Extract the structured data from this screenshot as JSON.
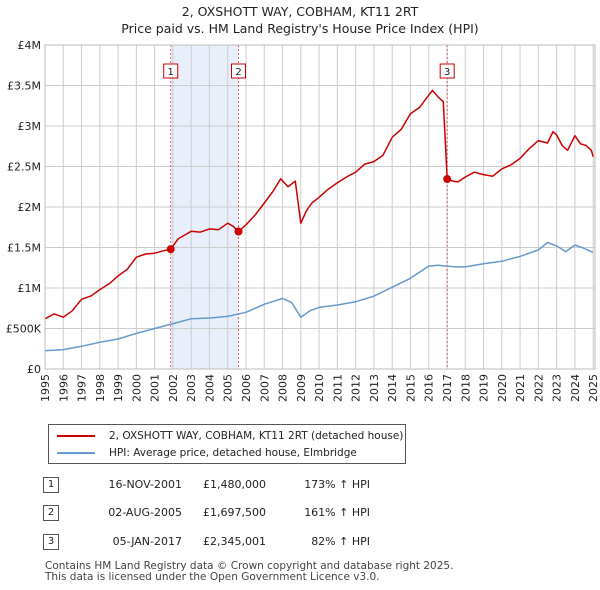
{
  "title": {
    "line1": "2, OXSHOTT WAY, COBHAM, KT11 2RT",
    "line2": "Price paid vs. HM Land Registry's House Price Index (HPI)"
  },
  "colors": {
    "property": "#cc0000",
    "hpi": "#6699cc",
    "shade": "#e8eefa",
    "grid": "#cccccc"
  },
  "chart_data": {
    "type": "line",
    "title": "Price paid vs. HM Land Registry's House Price Index (HPI)",
    "xlabel": "",
    "ylabel": "",
    "xlim": [
      1995,
      2025.1
    ],
    "ylim": [
      0,
      4000000
    ],
    "y_ticks": [
      0,
      500000,
      1000000,
      1500000,
      2000000,
      2500000,
      3000000,
      3500000,
      4000000
    ],
    "y_tick_labels": [
      "£0",
      "£500K",
      "£1M",
      "£1.5M",
      "£2M",
      "£2.5M",
      "£3M",
      "£3.5M",
      "£4M"
    ],
    "x_ticks": [
      1995,
      1996,
      1997,
      1998,
      1999,
      2000,
      2001,
      2002,
      2003,
      2004,
      2005,
      2006,
      2007,
      2008,
      2009,
      2010,
      2011,
      2012,
      2013,
      2014,
      2015,
      2016,
      2017,
      2018,
      2019,
      2020,
      2021,
      2022,
      2023,
      2024,
      2025
    ],
    "x_tick_labels": [
      "1995",
      "1996",
      "1997",
      "1998",
      "1999",
      "2000",
      "2001",
      "2002",
      "2003",
      "2004",
      "2005",
      "2006",
      "2007",
      "2008",
      "2009",
      "2010",
      "2011",
      "2012",
      "2013",
      "2014",
      "2015",
      "2016",
      "2017",
      "2018",
      "2019",
      "2020",
      "2021",
      "2022",
      "2023",
      "2024",
      "2025"
    ],
    "grid": true,
    "shaded_periods": [
      [
        2001.88,
        2005.59
      ]
    ],
    "series": [
      {
        "name": "2, OXSHOTT WAY, COBHAM, KT11 2RT (detached house)",
        "color": "#cc0000",
        "x": [
          1995.0,
          1995.5,
          1996.0,
          1996.5,
          1997.0,
          1997.5,
          1998.0,
          1998.5,
          1999.0,
          1999.5,
          2000.0,
          2000.5,
          2001.0,
          2001.5,
          2001.88,
          2002.3,
          2002.7,
          2003.0,
          2003.5,
          2004.0,
          2004.5,
          2005.0,
          2005.3,
          2005.59,
          2006.0,
          2006.5,
          2007.0,
          2007.5,
          2007.9,
          2008.3,
          2008.7,
          2009.0,
          2009.3,
          2009.6,
          2010.0,
          2010.5,
          2011.0,
          2011.5,
          2012.0,
          2012.5,
          2013.0,
          2013.5,
          2014.0,
          2014.5,
          2015.0,
          2015.5,
          2015.9,
          2016.2,
          2016.5,
          2016.8,
          2017.01,
          2017.3,
          2017.6,
          2018.0,
          2018.5,
          2019.0,
          2019.5,
          2020.0,
          2020.5,
          2021.0,
          2021.5,
          2022.0,
          2022.5,
          2022.8,
          2023.0,
          2023.3,
          2023.6,
          2024.0,
          2024.3,
          2024.6,
          2024.9,
          2025.0
        ],
        "y": [
          620000,
          680000,
          640000,
          720000,
          860000,
          900000,
          980000,
          1050000,
          1150000,
          1230000,
          1380000,
          1420000,
          1430000,
          1460000,
          1480000,
          1610000,
          1660000,
          1700000,
          1690000,
          1730000,
          1720000,
          1800000,
          1760000,
          1697500,
          1780000,
          1900000,
          2050000,
          2200000,
          2350000,
          2250000,
          2320000,
          1800000,
          1950000,
          2050000,
          2120000,
          2220000,
          2300000,
          2370000,
          2430000,
          2530000,
          2560000,
          2640000,
          2860000,
          2960000,
          3150000,
          3230000,
          3350000,
          3440000,
          3360000,
          3300000,
          2345001,
          2320000,
          2310000,
          2370000,
          2430000,
          2400000,
          2380000,
          2470000,
          2520000,
          2600000,
          2720000,
          2820000,
          2790000,
          2930000,
          2890000,
          2760000,
          2700000,
          2880000,
          2780000,
          2760000,
          2700000,
          2620000
        ]
      },
      {
        "name": "HPI: Average price, detached house, Elmbridge",
        "color": "#6699cc",
        "x": [
          1995.0,
          1996.0,
          1997.0,
          1998.0,
          1999.0,
          2000.0,
          2001.0,
          2002.0,
          2003.0,
          2004.0,
          2005.0,
          2006.0,
          2007.0,
          2008.0,
          2008.5,
          2009.0,
          2009.5,
          2010.0,
          2011.0,
          2012.0,
          2013.0,
          2014.0,
          2015.0,
          2016.0,
          2016.5,
          2017.0,
          2017.5,
          2018.0,
          2019.0,
          2020.0,
          2021.0,
          2022.0,
          2022.5,
          2023.0,
          2023.5,
          2024.0,
          2024.5,
          2025.0
        ],
        "y": [
          225000,
          240000,
          280000,
          330000,
          370000,
          440000,
          500000,
          560000,
          620000,
          630000,
          650000,
          700000,
          800000,
          870000,
          820000,
          640000,
          720000,
          760000,
          790000,
          830000,
          900000,
          1010000,
          1120000,
          1270000,
          1280000,
          1270000,
          1260000,
          1260000,
          1300000,
          1330000,
          1390000,
          1470000,
          1560000,
          1520000,
          1450000,
          1530000,
          1490000,
          1440000
        ]
      }
    ],
    "sales": [
      {
        "label": "1",
        "x": 2001.88,
        "y": 1480000
      },
      {
        "label": "2",
        "x": 2005.59,
        "y": 1697500
      },
      {
        "label": "3",
        "x": 2017.01,
        "y": 2345001
      }
    ]
  },
  "legend": {
    "items": [
      {
        "label": "2, OXSHOTT WAY, COBHAM, KT11 2RT (detached house)"
      },
      {
        "label": "HPI: Average price, detached house, Elmbridge"
      }
    ]
  },
  "sales_table": [
    {
      "num": "1",
      "date": "16-NOV-2001",
      "price": "£1,480,000",
      "hpi": "173% ↑ HPI"
    },
    {
      "num": "2",
      "date": "02-AUG-2005",
      "price": "£1,697,500",
      "hpi": "161% ↑ HPI"
    },
    {
      "num": "3",
      "date": "05-JAN-2017",
      "price": "£2,345,001",
      "hpi": "82% ↑ HPI"
    }
  ],
  "footer": {
    "line1": "Contains HM Land Registry data © Crown copyright and database right 2025.",
    "line2": "This data is licensed under the Open Government Licence v3.0."
  }
}
